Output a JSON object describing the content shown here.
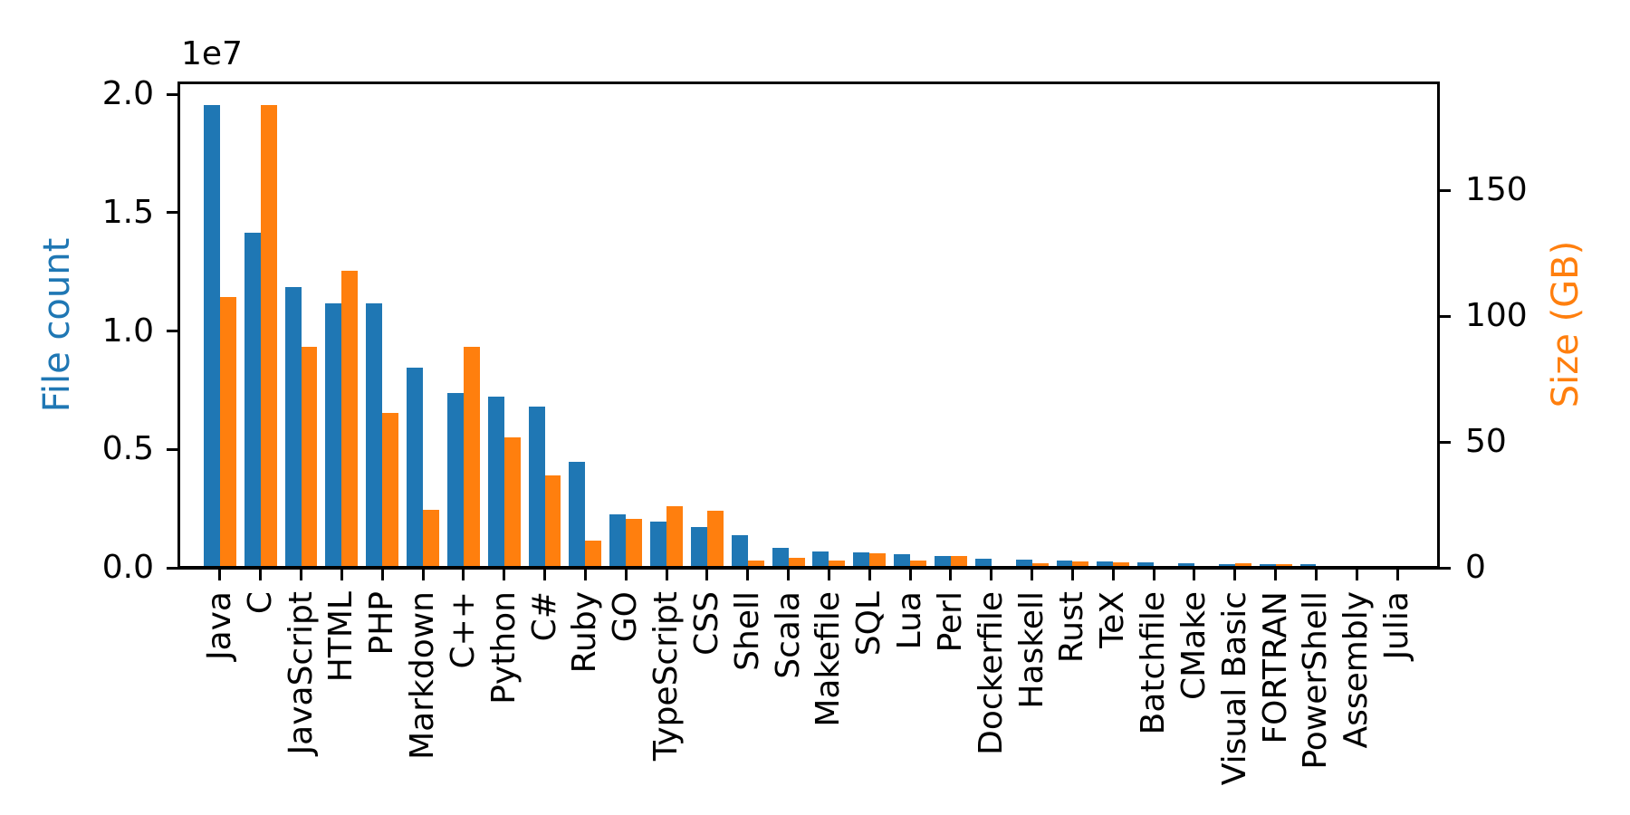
{
  "chart_data": {
    "type": "bar",
    "title": "",
    "xlabel": "",
    "grid": false,
    "legend": null,
    "categories": [
      "Java",
      "C",
      "JavaScript",
      "HTML",
      "PHP",
      "Markdown",
      "C++",
      "Python",
      "C#",
      "Ruby",
      "GO",
      "TypeScript",
      "CSS",
      "Shell",
      "Scala",
      "Makefile",
      "SQL",
      "Lua",
      "Perl",
      "Dockerfile",
      "Haskell",
      "Rust",
      "TeX",
      "Batchfile",
      "CMake",
      "Visual Basic",
      "FORTRAN",
      "PowerShell",
      "Assembly",
      "Julia"
    ],
    "series": [
      {
        "name": "File count",
        "axis": "left",
        "color": "#1f77b4",
        "values": [
          19548190,
          14143113,
          11839883,
          11178557,
          11177610,
          8464626,
          7380520,
          7226626,
          6811652,
          4473331,
          2265436,
          1940406,
          1734406,
          1385648,
          835755,
          679430,
          656671,
          578554,
          497949,
          366505,
          340623,
          322431,
          251015,
          236945,
          175282,
          155652,
          142038,
          136846,
          82905,
          58317
        ]
      },
      {
        "name": "Size (GB)",
        "axis": "right",
        "color": "#ff7f0e",
        "values": [
          107.7,
          183.83,
          87.82,
          118.12,
          61.41,
          23.09,
          87.73,
          52.03,
          36.83,
          10.95,
          19.28,
          24.59,
          22.67,
          3.01,
          3.87,
          2.92,
          5.67,
          2.81,
          4.7,
          0.71,
          1.85,
          2.68,
          2.15,
          0.7,
          0.54,
          1.91,
          1.62,
          0.69,
          0.78,
          0.29
        ]
      }
    ],
    "left_axis": {
      "label": "File count",
      "color": "#1f77b4",
      "offset_text": "1e7",
      "tick_values": [
        0,
        5000000,
        10000000,
        15000000,
        20000000
      ],
      "tick_labels": [
        "0.0",
        "0.5",
        "1.0",
        "1.5",
        "2.0"
      ],
      "range": [
        0,
        20500000
      ]
    },
    "right_axis": {
      "label": "Size (GB)",
      "color": "#ff7f0e",
      "tick_values": [
        0,
        50,
        100,
        150
      ],
      "tick_labels": [
        "0",
        "50",
        "100",
        "150"
      ],
      "range": [
        0,
        193
      ]
    },
    "x_axis": {
      "tick_label_rotation": 90
    }
  }
}
